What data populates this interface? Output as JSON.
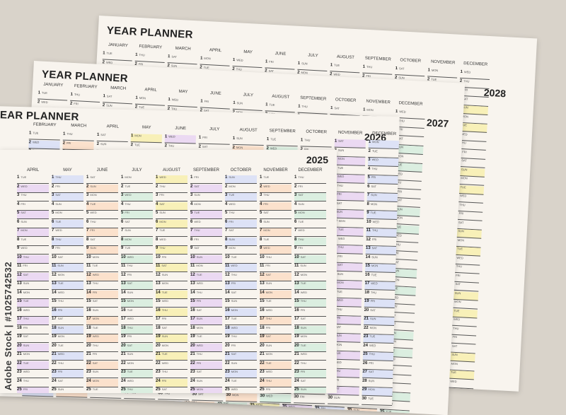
{
  "planner_title": "YEAR PLANNER",
  "years": [
    "2028",
    "2027",
    "2026",
    "2025"
  ],
  "months_full": [
    "JANUARY",
    "FEBRUARY",
    "MARCH",
    "APRIL",
    "MAY",
    "JUNE",
    "JULY",
    "AUGUST",
    "SEPTEMBER",
    "OCTOBER",
    "NOVEMBER",
    "DECEMBER"
  ],
  "months_2026_visible": [
    "FEBRUARY",
    "MARCH",
    "APRIL",
    "MAY",
    "JUNE",
    "JULY",
    "AUGUST",
    "SEPTEMBER",
    "OCTOBER",
    "NOVEMBER",
    "DECEMBER"
  ],
  "months_2025_visible": [
    "APRIL",
    "MAY",
    "JUNE",
    "JULY",
    "AUGUST",
    "SEPTEMBER",
    "OCTOBER",
    "NOVEMBER",
    "DECEMBER"
  ],
  "watermark": "Adobe Stock | #1025742532",
  "colors": {
    "background": "#d9d3ca",
    "sheet": "#f8f4ee",
    "orange": "#fbe1cc",
    "green": "#dbeee0",
    "yellow": "#f8f0b8",
    "purple": "#ebd9f2",
    "blue": "#dde2f6"
  }
}
